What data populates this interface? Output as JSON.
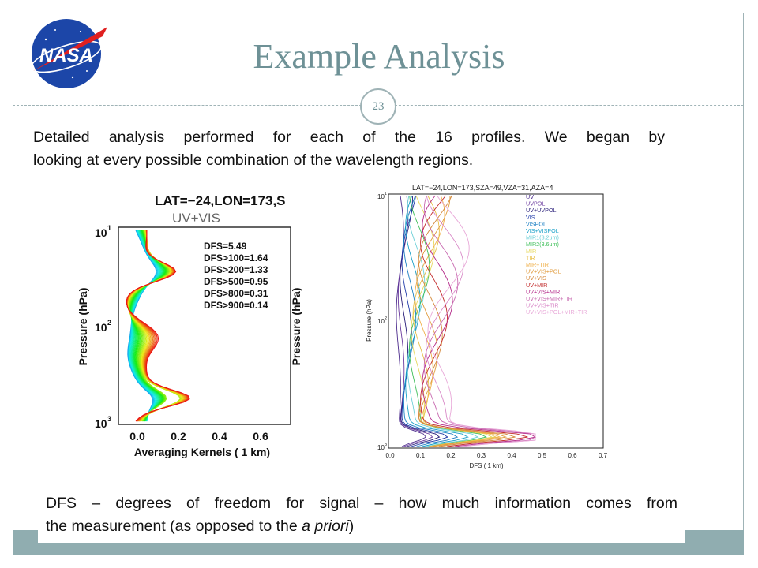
{
  "slide": {
    "title": "Example Analysis",
    "page_number": "23",
    "logo_text": "NASA",
    "body_line1": "Detailed analysis performed for each of the 16 profiles. We began by",
    "body_line2": "looking at every possible combination of the wavelength regions.",
    "note_line1": "DFS – degrees of freedom for signal – how much information comes from",
    "note_line2_pre": "the measurement (as opposed to the ",
    "note_line2_italic": "a priori",
    "note_line2_post": ")"
  },
  "left_figure": {
    "header": "LAT=−24,LON=173,S",
    "subtitle": "UV+VIS",
    "ylabel": "Pressure (hPa)",
    "ylabel_right": "Pressure (hPa)",
    "xlabel": "Averaging Kernels ( 1 km)",
    "yticks": [
      "10",
      "10",
      "10"
    ],
    "ytick_exp": [
      "1",
      "2",
      "3"
    ],
    "xticks": [
      "0.0",
      "0.2",
      "0.4",
      "0.6"
    ],
    "dfs": [
      "DFS=5.49",
      "DFS>100=1.64",
      "DFS>200=1.33",
      "DFS>500=0.95",
      "DFS>800=0.31",
      "DFS>900=0.14"
    ]
  },
  "right_figure": {
    "header": "LAT=−24,LON=173,SZA=49,VZA=31,AZA=4",
    "ylabel": "Pressure (hPa)",
    "xlabel": "DFS ( 1 km)",
    "yticks": [
      "10",
      "10",
      "10"
    ],
    "ytick_exp": [
      "1",
      "2",
      "3"
    ],
    "xticks": [
      "0.0",
      "0.1",
      "0.2",
      "0.3",
      "0.4",
      "0.5",
      "0.6",
      "0.7"
    ],
    "legend": [
      {
        "label": "UV",
        "color": "#4b2a8c"
      },
      {
        "label": "UVPOL",
        "color": "#6a3a9e"
      },
      {
        "label": "UV+UVPOL",
        "color": "#2a1f7a"
      },
      {
        "label": "VIS",
        "color": "#1f3aa8"
      },
      {
        "label": "VISPOL",
        "color": "#1a7ec2"
      },
      {
        "label": "VIS+VISPOL",
        "color": "#1aa0c8"
      },
      {
        "label": "MIR1(3.2um)",
        "color": "#6fd0d8"
      },
      {
        "label": "MIR2(3.6um)",
        "color": "#3fbf5a"
      },
      {
        "label": "MIR",
        "color": "#e6d85a"
      },
      {
        "label": "TIR",
        "color": "#e8c04a"
      },
      {
        "label": "MIR+TIR",
        "color": "#f0b04a"
      },
      {
        "label": "UV+VIS+POL",
        "color": "#e09a3a"
      },
      {
        "label": "UV+VIS",
        "color": "#d4883a"
      },
      {
        "label": "UV+MIR",
        "color": "#c22a2a"
      },
      {
        "label": "UV+VIS+MIR",
        "color": "#b42a8a"
      },
      {
        "label": "UV+VIS+MIR+TIR",
        "color": "#c86ab0"
      },
      {
        "label": "UV+VIS+TIR",
        "color": "#d98ac8"
      },
      {
        "label": "UV+VIS+POL+MIR+TIR",
        "color": "#e8a8d8"
      }
    ]
  }
}
